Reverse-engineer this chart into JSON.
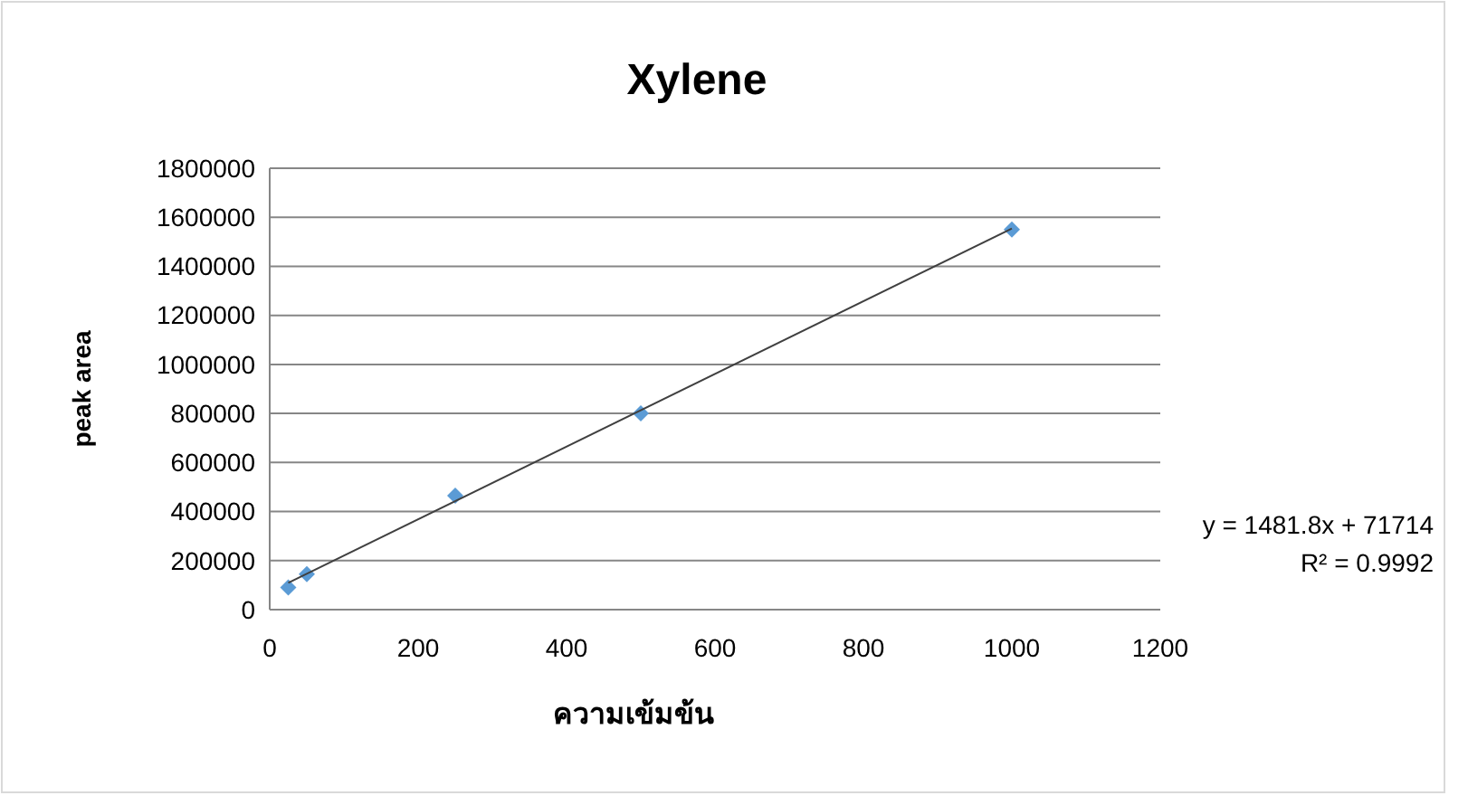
{
  "chart_data": {
    "type": "scatter",
    "title": "Xylene",
    "xlabel": "ความเข้มข้น",
    "ylabel": "peak area",
    "series": [
      {
        "color": "#5b9bd5",
        "x": [
          25,
          50,
          250,
          500,
          1000
        ],
        "values": [
          90000,
          145000,
          465000,
          800000,
          1550000
        ],
        "marker": "diamond"
      },
      {
        "type": "line",
        "color": "#404040",
        "x": [
          25,
          1000
        ],
        "values": [
          109000,
          1554000
        ],
        "marker": "none",
        "line_style": "solid"
      }
    ],
    "xlim": [
      0,
      1200
    ],
    "xticks": [
      0,
      200,
      400,
      600,
      800,
      1000,
      1200
    ],
    "ylim": [
      0,
      1800000
    ],
    "yticks": [
      0,
      200000,
      400000,
      600000,
      800000,
      1000000,
      1200000,
      1400000,
      1600000,
      1800000
    ],
    "grid": "y",
    "annotations": [
      "y = 1481.8x + 71714",
      "R² = 0.9992"
    ]
  }
}
